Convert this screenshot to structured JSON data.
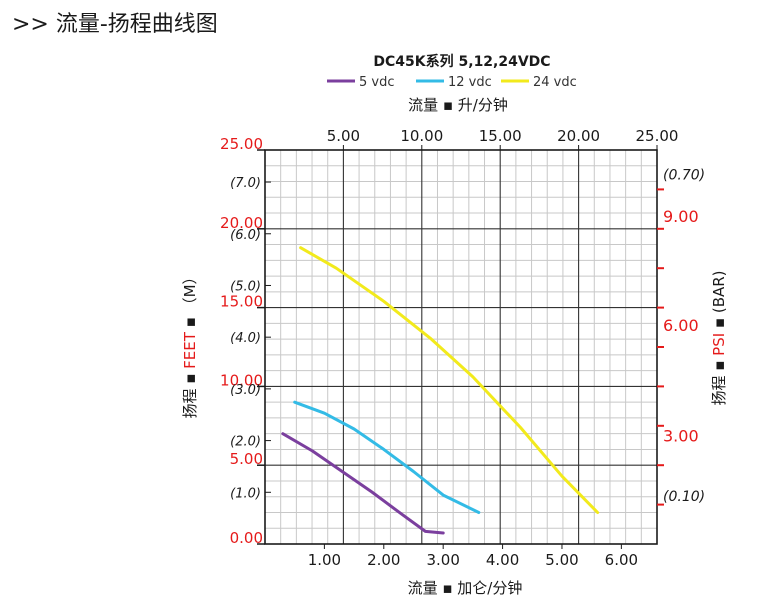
{
  "page": {
    "title": ">> 流量-扬程曲线图"
  },
  "chart_data": {
    "type": "line",
    "title": "DC45K系列 5,12,24VDC",
    "top_axis_label": "流量 ▪ 升/分钟",
    "bottom_axis_label": "流量 ▪ 加仑/分钟",
    "left_axis_label_a": "扬程 ▪ ",
    "left_axis_label_b": "FEET",
    "left_axis_label_c": " ▪ （M）",
    "right_axis_label_a": "扬程 ▪ ",
    "right_axis_label_b": "PSI",
    "right_axis_label_c": " ▪ (BAR)",
    "xlim_gpm": [
      0,
      6.6
    ],
    "xlim_lpm": [
      0,
      25
    ],
    "ylim_feet": [
      0,
      25
    ],
    "x_ticks_gpm": [
      "1.00",
      "2.00",
      "3.00",
      "4.00",
      "5.00",
      "6.00"
    ],
    "x_tick_values_gpm": [
      1,
      2,
      3,
      4,
      5,
      6
    ],
    "x_ticks_lpm": [
      "5.00",
      "10.00",
      "15.00",
      "20.00",
      "25.00"
    ],
    "x_tick_values_lpm": [
      5,
      10,
      15,
      20,
      25
    ],
    "y_ticks_feet": [
      "0.00",
      "5.00",
      "10.00",
      "15.00",
      "20.00",
      "25.00"
    ],
    "y_tick_values_feet": [
      0,
      5,
      10,
      15,
      20,
      25
    ],
    "y_ticks_m": [
      "(1.0)",
      "(2.0)",
      "(3.0)",
      "(4.0)",
      "(5.0)",
      "(6.0)",
      "(7.0)"
    ],
    "y_tick_values_m": [
      1,
      2,
      3,
      4,
      5,
      6,
      7
    ],
    "y_ticks_psi": [
      "(0.10)",
      "3.00",
      "6.00",
      "9.00",
      "(0.70)"
    ],
    "y_tick_values_psi_feet": [
      3.1,
      6.9,
      13.9,
      20.8,
      23.5
    ],
    "series": [
      {
        "name": "5 vdc",
        "color": "#7b3f9e",
        "x": [
          0.3,
          0.8,
          1.3,
          1.8,
          2.3,
          2.7,
          3.0
        ],
        "y": [
          7.0,
          5.9,
          4.6,
          3.3,
          1.9,
          0.8,
          0.7
        ]
      },
      {
        "name": "12 vdc",
        "color": "#33bbe6",
        "x": [
          0.5,
          1.0,
          1.5,
          2.0,
          2.5,
          3.0,
          3.6
        ],
        "y": [
          9.0,
          8.3,
          7.3,
          6.0,
          4.6,
          3.1,
          2.0
        ]
      },
      {
        "name": "24 vdc",
        "color": "#f2ea1c",
        "x": [
          0.6,
          1.2,
          2.0,
          2.8,
          3.5,
          4.3,
          5.0,
          5.6
        ],
        "y": [
          18.8,
          17.5,
          15.4,
          13.0,
          10.6,
          7.4,
          4.3,
          2.0
        ]
      }
    ]
  }
}
